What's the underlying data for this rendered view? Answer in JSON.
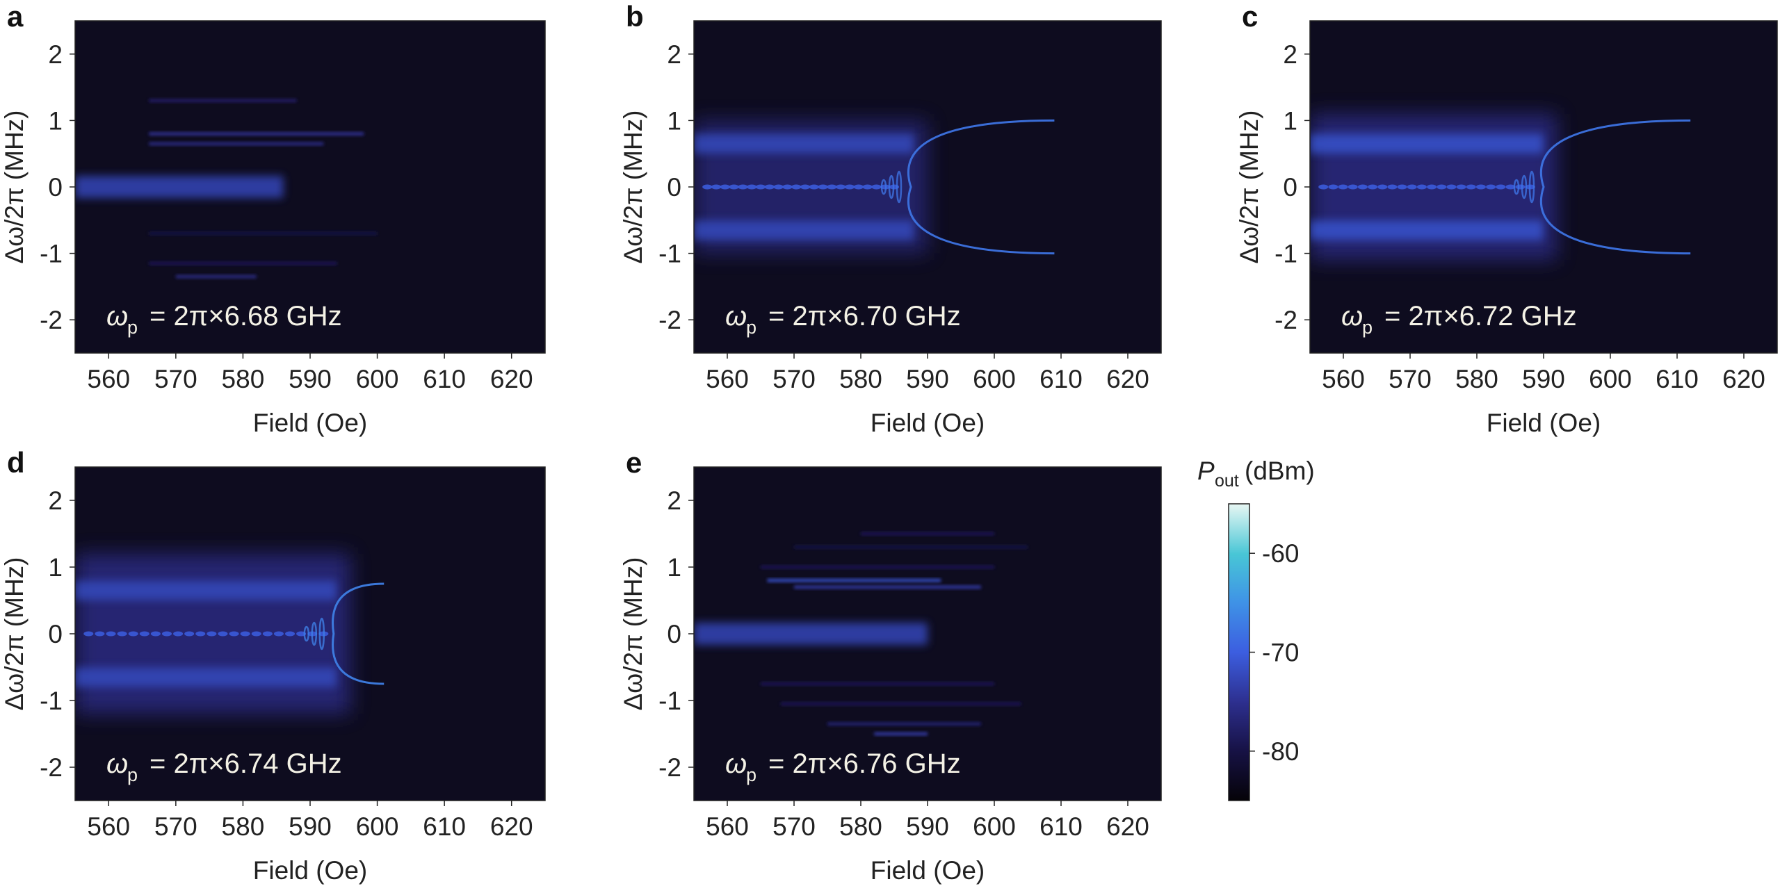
{
  "colors": {
    "background": "#ffffff",
    "plot_background": "#0e0c1f",
    "colormap": [
      "#050308",
      "#171246",
      "#2d2f8e",
      "#3c5ee0",
      "#3f93e6",
      "#48c6d6",
      "#e8f7f3"
    ],
    "annotation_text": "#f4f2e6"
  },
  "chart_data": [
    {
      "panel": "a",
      "type": "heatmap",
      "xlabel": "Field (Oe)",
      "ylabel": "Δω/2π (MHz)",
      "xlim": [
        555,
        625
      ],
      "ylim": [
        -2.5,
        2.5
      ],
      "xticks": [
        "560",
        "570",
        "580",
        "590",
        "600",
        "610",
        "620"
      ],
      "yticks": [
        "-2",
        "-1",
        "0",
        "1",
        "2"
      ],
      "annotation": {
        "symbol": "ω",
        "sub": "p",
        "text": "= 2π×6.68 GHz"
      },
      "features": {
        "center_band": {
          "y": 0,
          "x_from": 555,
          "x_to": 586,
          "level_dBm": -73
        },
        "side_lines": [
          {
            "y": 1.3,
            "x_from": 566,
            "x_to": 588,
            "level_dBm": -78
          },
          {
            "y": 0.8,
            "x_from": 566,
            "x_to": 598,
            "level_dBm": -75
          },
          {
            "y": 0.65,
            "x_from": 566,
            "x_to": 592,
            "level_dBm": -76
          },
          {
            "y": -0.7,
            "x_from": 566,
            "x_to": 600,
            "level_dBm": -80
          },
          {
            "y": -1.15,
            "x_from": 566,
            "x_to": 594,
            "level_dBm": -79
          },
          {
            "y": -1.35,
            "x_from": 570,
            "x_to": 582,
            "level_dBm": -76
          }
        ]
      }
    },
    {
      "panel": "b",
      "type": "heatmap",
      "xlabel": "Field (Oe)",
      "ylabel": "Δω/2π (MHz)",
      "xlim": [
        555,
        625
      ],
      "ylim": [
        -2.5,
        2.5
      ],
      "xticks": [
        "560",
        "570",
        "580",
        "590",
        "600",
        "610",
        "620"
      ],
      "yticks": [
        "-2",
        "-1",
        "0",
        "1",
        "2"
      ],
      "annotation": {
        "symbol": "ω",
        "sub": "p",
        "text": "= 2π×6.70 GHz"
      },
      "features": {
        "broad_band": {
          "x_from": 555,
          "x_to": 590,
          "half_width_MHz": 1.0,
          "level_dBm": -76
        },
        "side_bands": [
          {
            "y": 0.65,
            "level_dBm": -72
          },
          {
            "y": -0.65,
            "level_dBm": -72
          }
        ],
        "center_dots": {
          "y": 0,
          "x_from": 557,
          "x_to": 585,
          "level_dBm": -70
        },
        "arc": {
          "vertex_x": 587.5,
          "vertex_y": 0,
          "open_to_x": 609,
          "half_height_MHz": 1.0,
          "level_dBm": -68
        }
      }
    },
    {
      "panel": "c",
      "type": "heatmap",
      "xlabel": "Field (Oe)",
      "ylabel": "Δω/2π (MHz)",
      "xlim": [
        555,
        625
      ],
      "ylim": [
        -2.5,
        2.5
      ],
      "xticks": [
        "560",
        "570",
        "580",
        "590",
        "600",
        "610",
        "620"
      ],
      "yticks": [
        "-2",
        "-1",
        "0",
        "1",
        "2"
      ],
      "annotation": {
        "symbol": "ω",
        "sub": "p",
        "text": "= 2π×6.72 GHz"
      },
      "features": {
        "broad_band": {
          "x_from": 555,
          "x_to": 592,
          "half_width_MHz": 1.1,
          "level_dBm": -75
        },
        "side_bands": [
          {
            "y": 0.65,
            "level_dBm": -71
          },
          {
            "y": -0.65,
            "level_dBm": -71
          }
        ],
        "center_dots": {
          "y": 0,
          "x_from": 557,
          "x_to": 588,
          "level_dBm": -70
        },
        "arc": {
          "vertex_x": 590,
          "vertex_y": 0,
          "open_to_x": 612,
          "half_height_MHz": 1.0,
          "level_dBm": -68
        }
      }
    },
    {
      "panel": "d",
      "type": "heatmap",
      "xlabel": "Field (Oe)",
      "ylabel": "Δω/2π (MHz)",
      "xlim": [
        555,
        625
      ],
      "ylim": [
        -2.5,
        2.5
      ],
      "xticks": [
        "560",
        "570",
        "580",
        "590",
        "600",
        "610",
        "620"
      ],
      "yticks": [
        "-2",
        "-1",
        "0",
        "1",
        "2"
      ],
      "annotation": {
        "symbol": "ω",
        "sub": "p",
        "text": "= 2π×6.74 GHz"
      },
      "features": {
        "broad_band": {
          "x_from": 555,
          "x_to": 596,
          "half_width_MHz": 1.2,
          "level_dBm": -75
        },
        "side_bands": [
          {
            "y": 0.65,
            "level_dBm": -72
          },
          {
            "y": -0.65,
            "level_dBm": -72
          }
        ],
        "center_dots": {
          "y": 0,
          "x_from": 557,
          "x_to": 592,
          "level_dBm": -70
        },
        "arc": {
          "vertex_x": 593.5,
          "vertex_y": 0,
          "open_to_x": 601,
          "half_height_MHz": 0.75,
          "level_dBm": -67
        }
      }
    },
    {
      "panel": "e",
      "type": "heatmap",
      "xlabel": "Field (Oe)",
      "ylabel": "Δω/2π (MHz)",
      "xlim": [
        555,
        625
      ],
      "ylim": [
        -2.5,
        2.5
      ],
      "xticks": [
        "560",
        "570",
        "580",
        "590",
        "600",
        "610",
        "620"
      ],
      "yticks": [
        "-2",
        "-1",
        "0",
        "1",
        "2"
      ],
      "annotation": {
        "symbol": "ω",
        "sub": "p",
        "text": "= 2π×6.76 GHz"
      },
      "features": {
        "center_band": {
          "y": 0,
          "x_from": 555,
          "x_to": 590,
          "level_dBm": -73
        },
        "side_lines": [
          {
            "y": 1.5,
            "x_from": 580,
            "x_to": 600,
            "level_dBm": -79
          },
          {
            "y": 1.3,
            "x_from": 570,
            "x_to": 605,
            "level_dBm": -80
          },
          {
            "y": 1.0,
            "x_from": 565,
            "x_to": 600,
            "level_dBm": -79
          },
          {
            "y": 0.8,
            "x_from": 566,
            "x_to": 592,
            "level_dBm": -72
          },
          {
            "y": 0.7,
            "x_from": 570,
            "x_to": 598,
            "level_dBm": -74
          },
          {
            "y": -0.75,
            "x_from": 565,
            "x_to": 600,
            "level_dBm": -79
          },
          {
            "y": -1.05,
            "x_from": 568,
            "x_to": 604,
            "level_dBm": -79
          },
          {
            "y": -1.35,
            "x_from": 575,
            "x_to": 598,
            "level_dBm": -77
          },
          {
            "y": -1.5,
            "x_from": 582,
            "x_to": 590,
            "level_dBm": -74
          }
        ]
      }
    }
  ],
  "colorbar": {
    "title_symbol": "P",
    "title_sub": "out",
    "title_unit": "(dBm)",
    "min": -85,
    "max": -55,
    "ticks": [
      {
        "value": -60,
        "label": "-60"
      },
      {
        "value": -70,
        "label": "-70"
      },
      {
        "value": -80,
        "label": "-80"
      }
    ]
  }
}
